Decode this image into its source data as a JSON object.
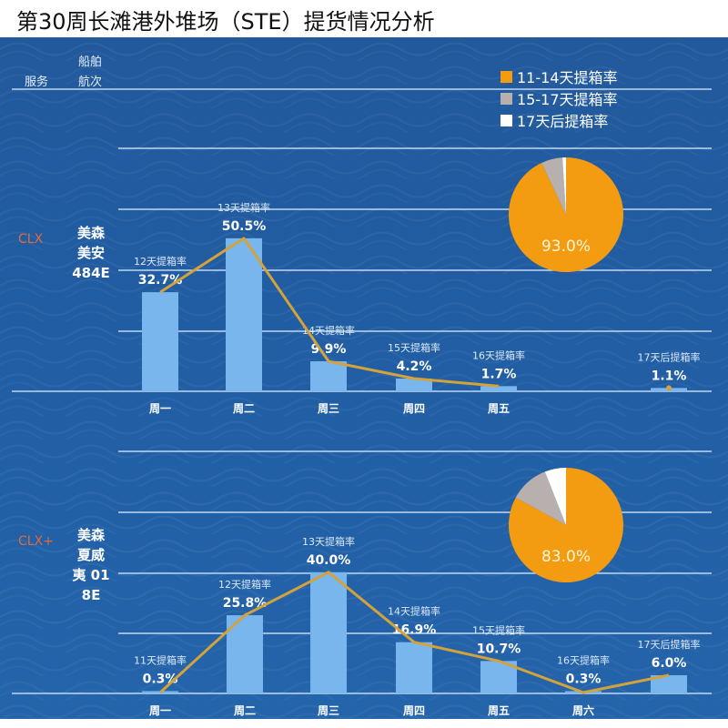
{
  "title": "第30周长滩港外堆场（STE）提货情况分析",
  "header": {
    "service_label": "服务",
    "vessel_label_1": "船舶",
    "vessel_label_2": "航次"
  },
  "legend": [
    {
      "label": "11-14天提箱率",
      "color": "#f39c12"
    },
    {
      "label": "15-17天提箱率",
      "color": "#b8b0ae"
    },
    {
      "label": "17天后提箱率",
      "color": "#ffffff"
    }
  ],
  "colors": {
    "bar": "#7ab6ee",
    "line": "#d4a23a",
    "grid": "#dff0ff",
    "service": "#e06a3c"
  },
  "chart_data": [
    {
      "type": "bar",
      "service": "CLX",
      "vessel_lines": [
        "美森",
        "美安",
        "484E"
      ],
      "categories": [
        "周一",
        "周二",
        "周三",
        "周四",
        "周五",
        ""
      ],
      "series_labels": [
        "12天提箱率",
        "13天提箱率",
        "14天提箱率",
        "15天提箱率",
        "16天提箱率",
        "17天后提箱率"
      ],
      "values": [
        32.7,
        50.5,
        9.9,
        4.2,
        1.7,
        1.1
      ],
      "value_labels": [
        "32.7%",
        "50.5%",
        "9.9%",
        "4.2%",
        "1.7%",
        "1.1%"
      ],
      "line_points": 5,
      "ylim": [
        0,
        80
      ],
      "pie": {
        "values": [
          93.0,
          6.0,
          1.0
        ],
        "label": "93.0%"
      }
    },
    {
      "type": "bar",
      "service": "CLX+",
      "vessel_lines": [
        "美森",
        "夏威",
        "夷 01",
        "8E"
      ],
      "categories": [
        "周一",
        "周二",
        "周三",
        "周四",
        "周五",
        "周六",
        ""
      ],
      "series_labels": [
        "11天提箱率",
        "12天提箱率",
        "13天提箱率",
        "14天提箱率",
        "15天提箱率",
        "16天提箱率",
        "17天后提箱率"
      ],
      "values": [
        0.3,
        25.8,
        40.0,
        16.9,
        10.7,
        0.3,
        6.0
      ],
      "value_labels": [
        "0.3%",
        "25.8%",
        "40.0%",
        "16.9%",
        "10.7%",
        "0.3%",
        "6.0%"
      ],
      "line_points": 7,
      "ylim": [
        0,
        80
      ],
      "pie": {
        "values": [
          83.0,
          11.0,
          6.0
        ],
        "label": "83.0%"
      }
    }
  ]
}
